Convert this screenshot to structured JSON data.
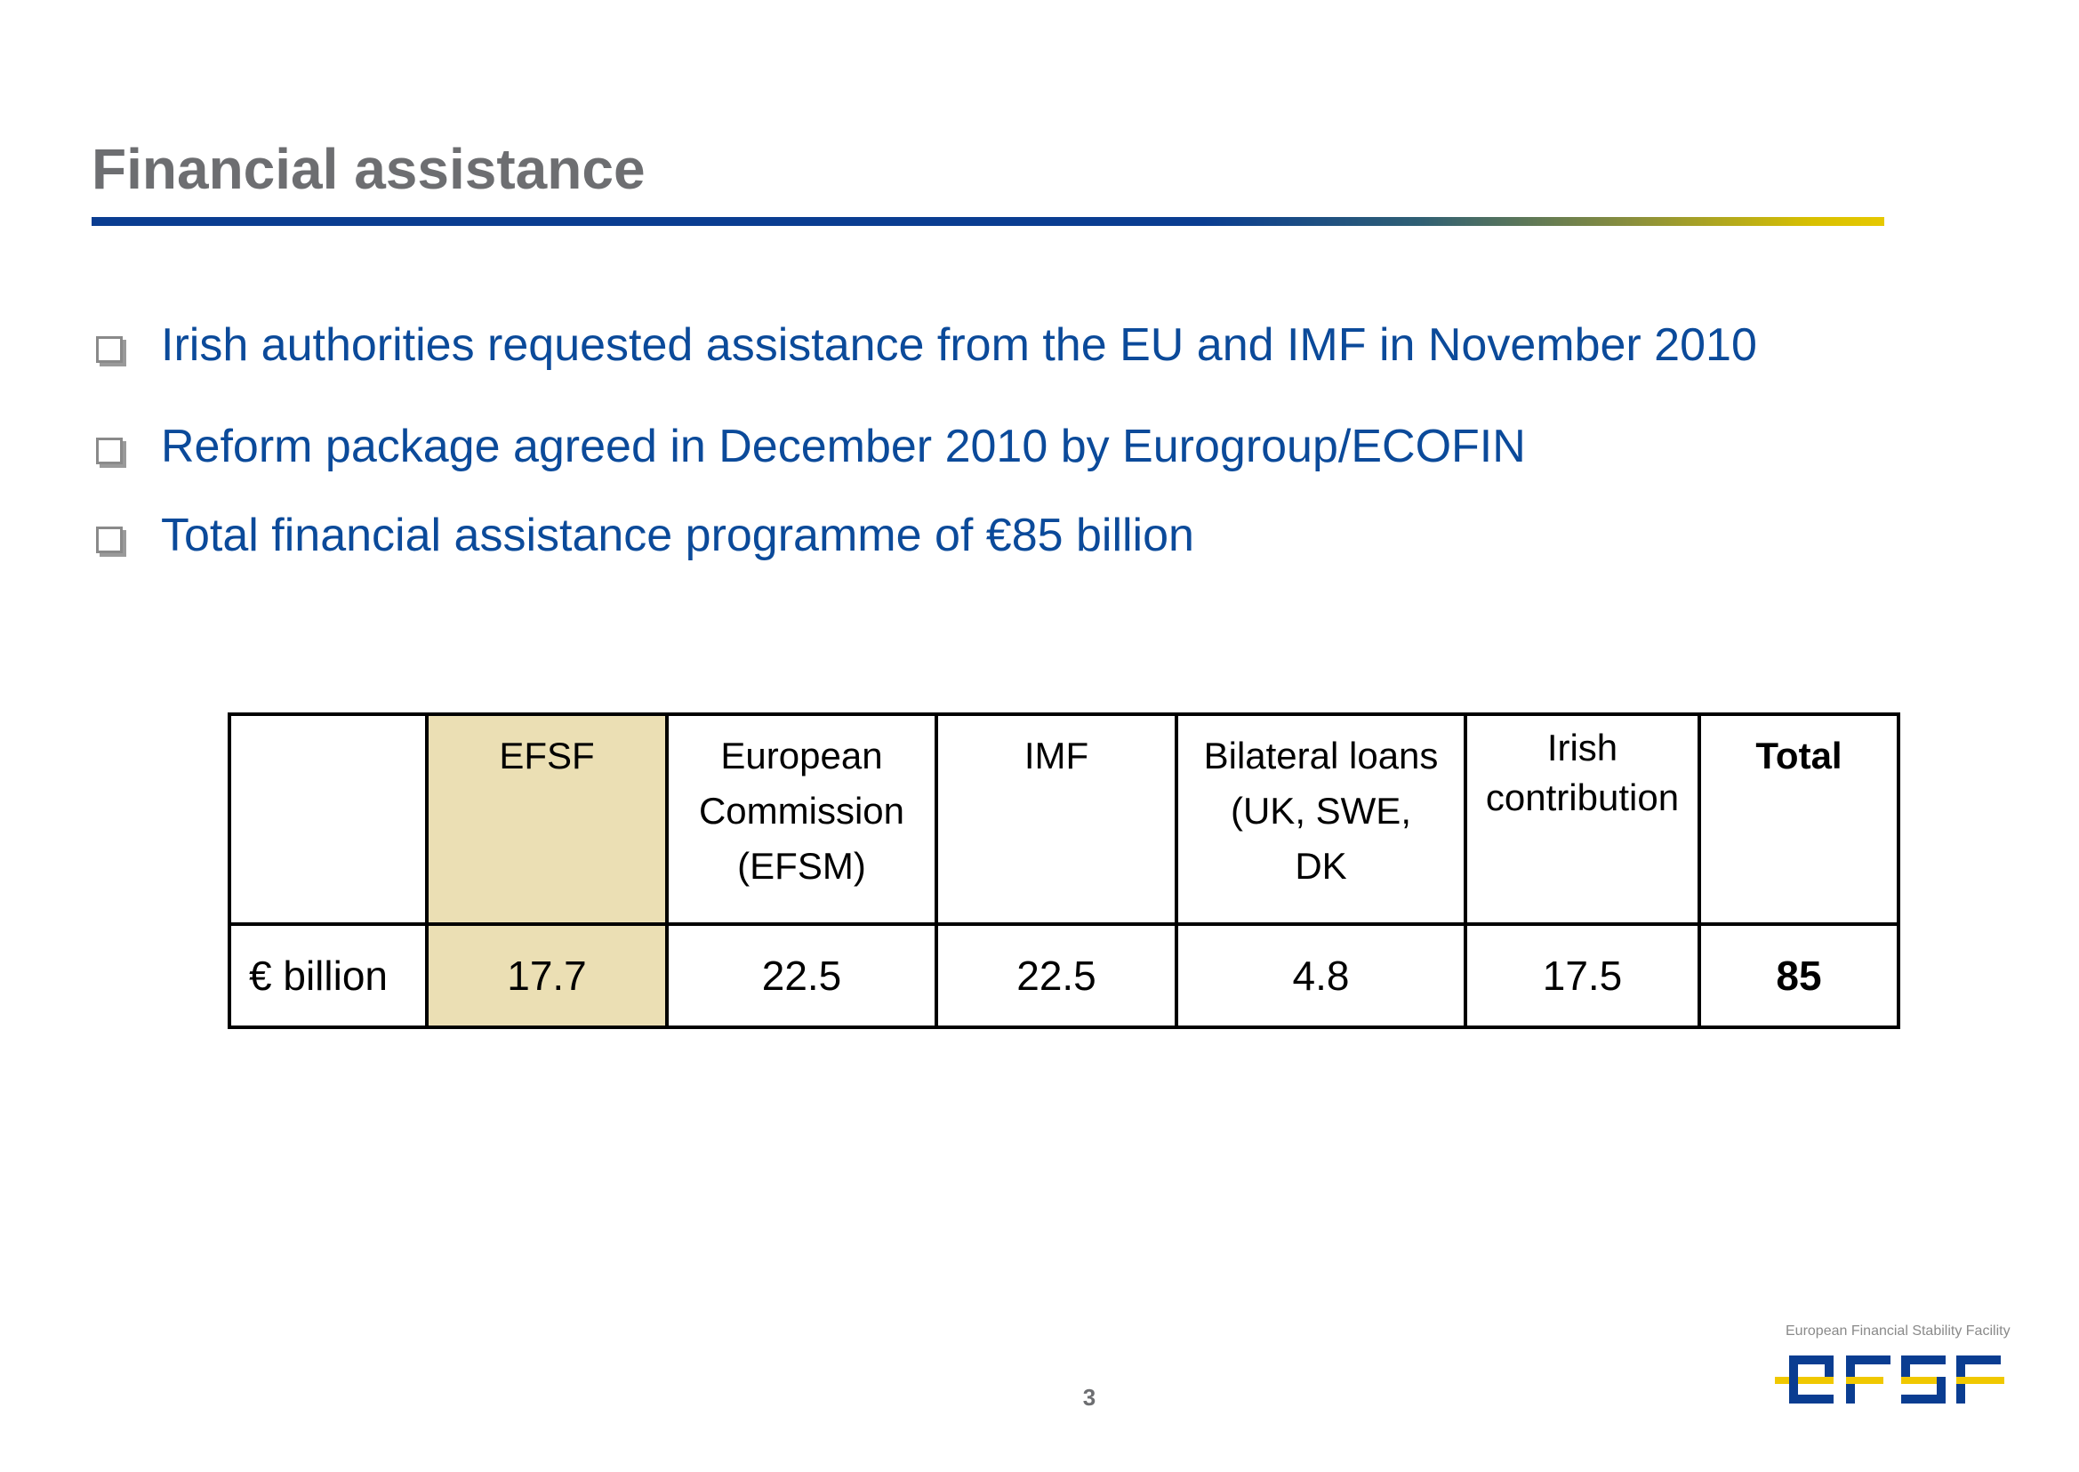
{
  "slide": {
    "title": "Financial assistance",
    "page_number": "3"
  },
  "bullets": [
    "Irish authorities requested assistance from the EU and IMF in November 2010",
    "Reform package agreed in December 2010 by Eurogroup/ECOFIN",
    "Total financial assistance programme of €85 billion"
  ],
  "table": {
    "headers": {
      "efsf": "EFSF",
      "ec": [
        "European",
        "Commission",
        "(EFSM)"
      ],
      "imf": "IMF",
      "bilateral": [
        "Bilateral loans",
        "(UK, SWE,",
        "DK"
      ],
      "irish": [
        "Irish",
        "contribution"
      ],
      "total": "Total"
    },
    "row_label": "€ billion",
    "values": {
      "efsf": "17.7",
      "ec": "22.5",
      "imf": "22.5",
      "bilateral": "4.8",
      "irish": "17.5",
      "total": "85"
    }
  },
  "logo": {
    "caption": "European Financial Stability Facility",
    "text": "EFSF",
    "colors": {
      "blue": "#0a3d91",
      "yellow": "#f0c800"
    }
  },
  "colors": {
    "title": "#6d6e71",
    "bullet_text": "#0b4a9a",
    "efsf_highlight": "#ebdfb4"
  }
}
